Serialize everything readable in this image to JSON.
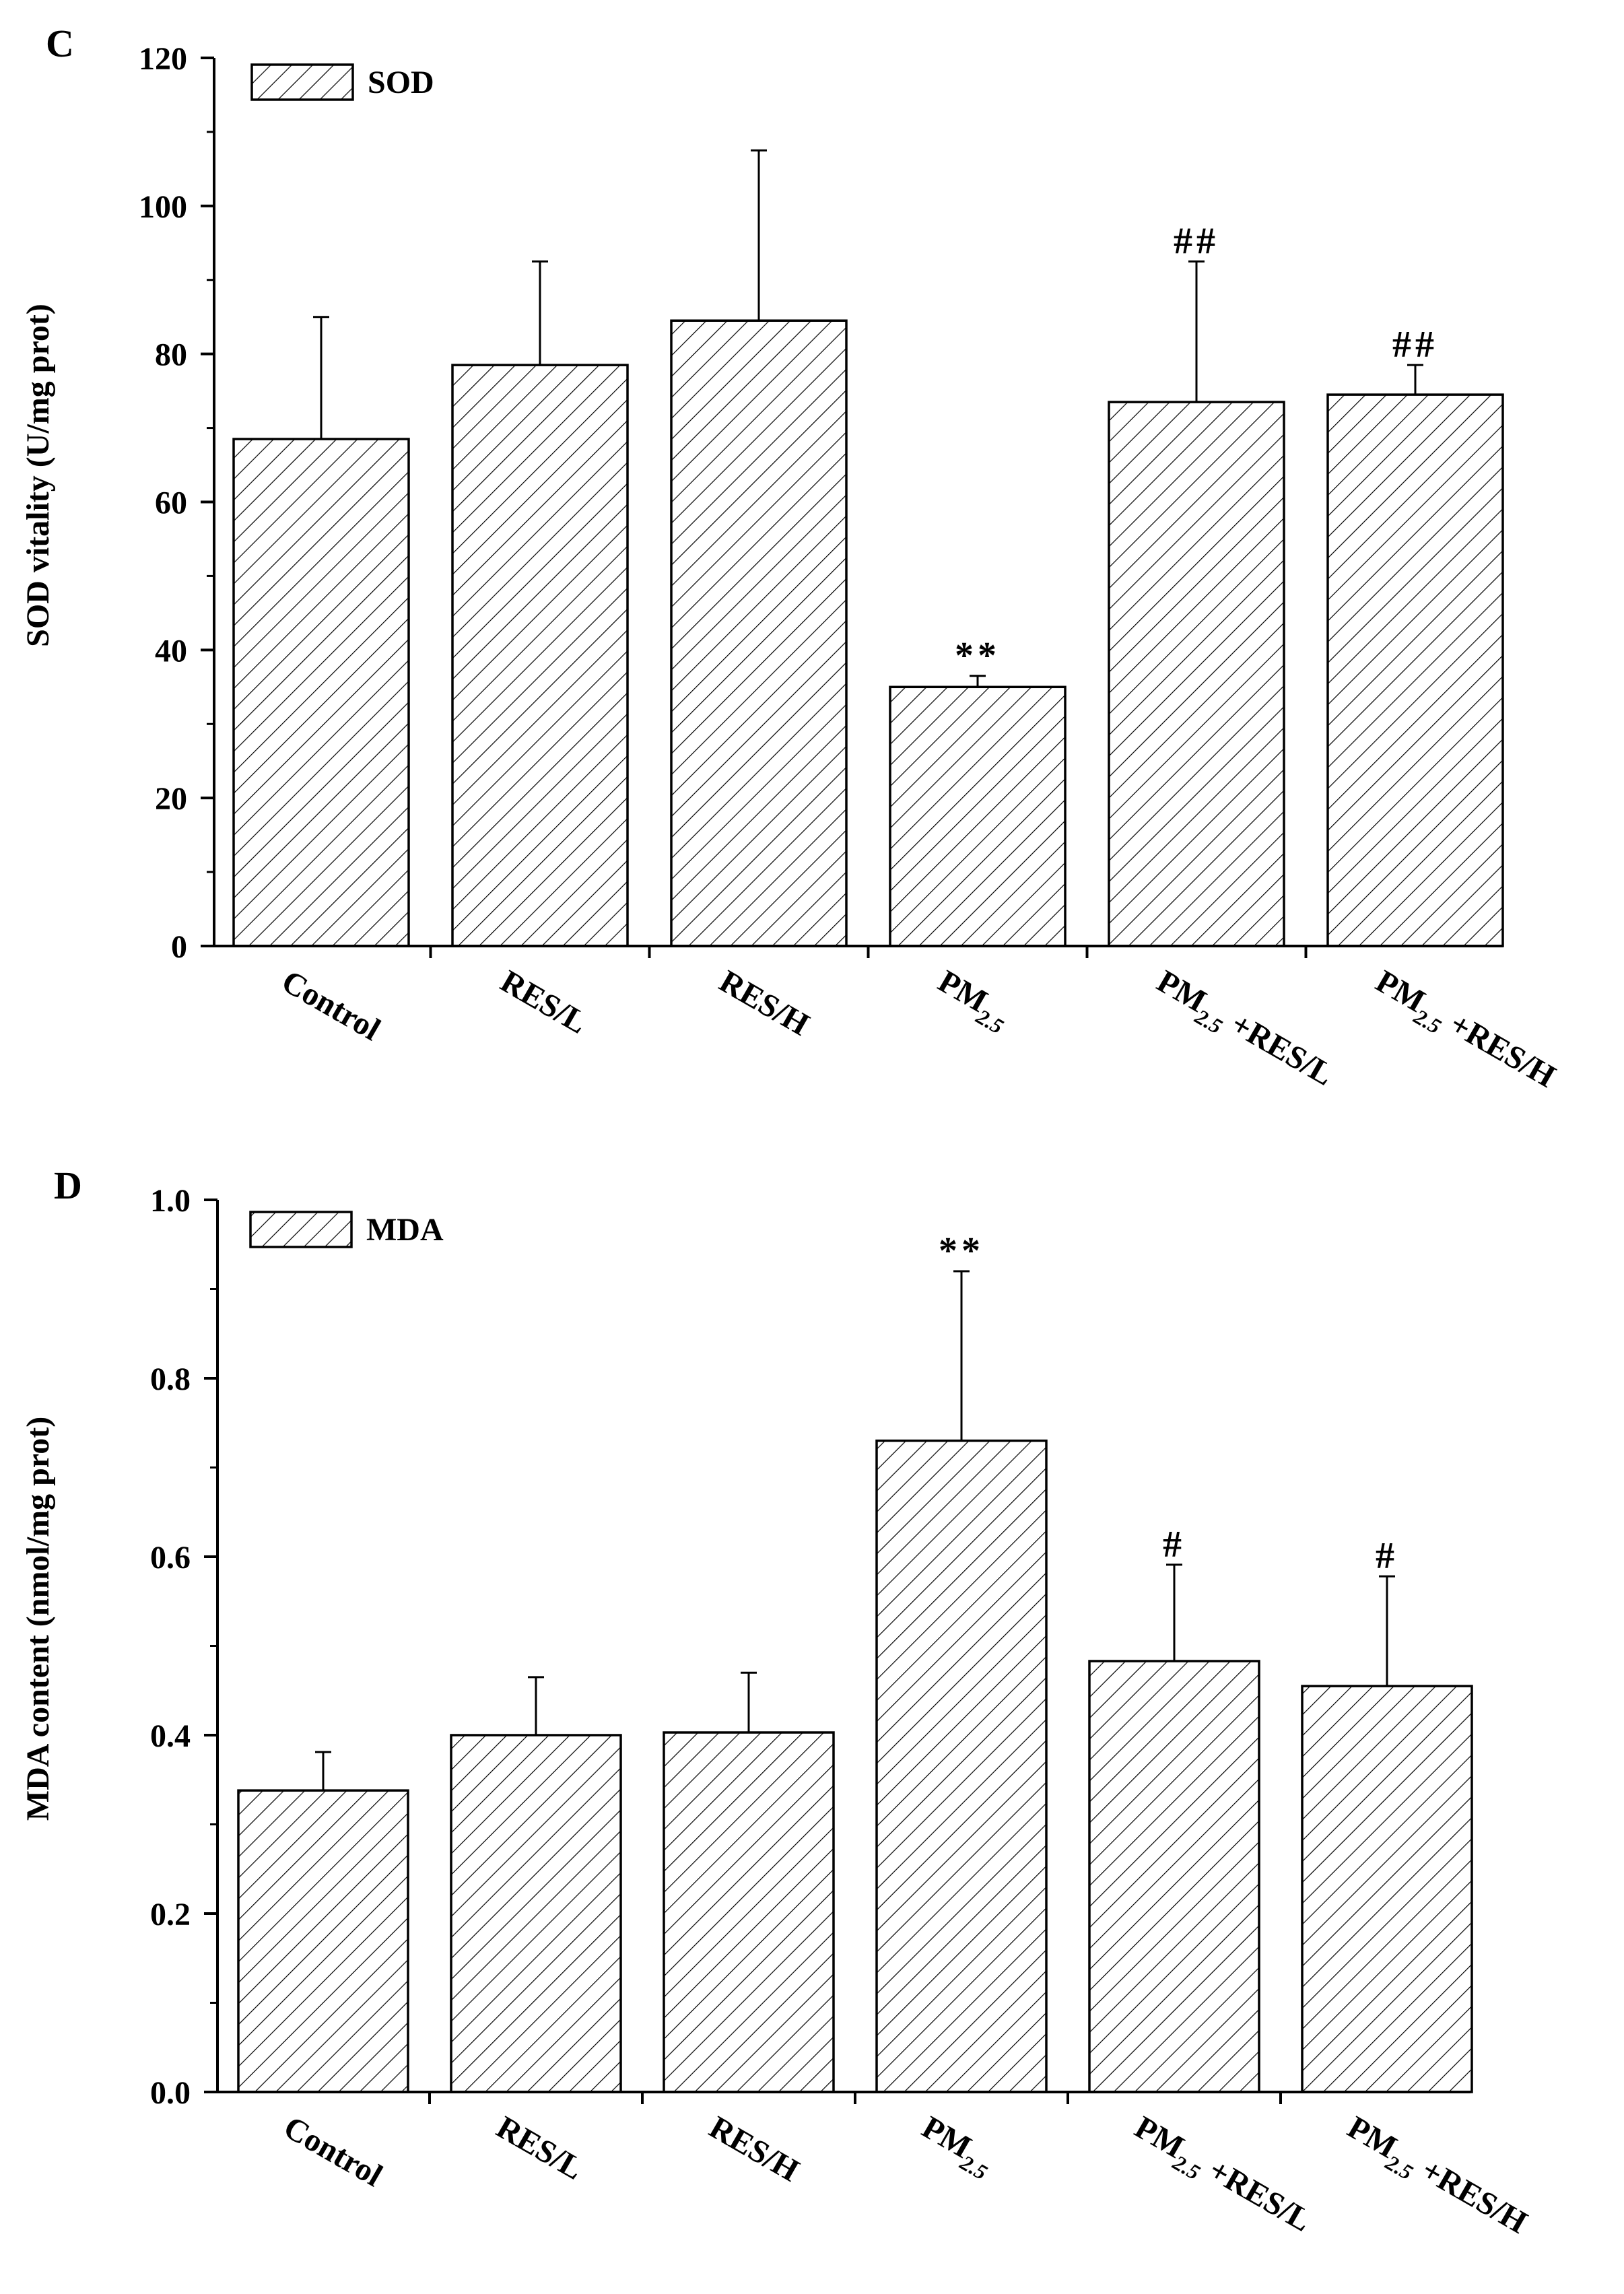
{
  "chart_data": [
    {
      "type": "bar",
      "panel_label": "C",
      "title": "",
      "xlabel": "",
      "ylabel": "SOD vitality (U/mg prot)",
      "ylim": [
        0,
        120
      ],
      "yticks": [
        0,
        20,
        40,
        60,
        80,
        100,
        120
      ],
      "ytick_labels": [
        "0",
        "20",
        "40",
        "60",
        "80",
        "100",
        "120"
      ],
      "categories": [
        "Control",
        "RES/L",
        "RES/H",
        "PM2.5",
        "PM2.5 +RES/L",
        "PM2.5 +RES/H"
      ],
      "category_parts": [
        {
          "main": "Control",
          "sub": "",
          "rest": ""
        },
        {
          "main": "RES/L",
          "sub": "",
          "rest": ""
        },
        {
          "main": "RES/H",
          "sub": "",
          "rest": ""
        },
        {
          "main": "PM",
          "sub": "2.5",
          "rest": ""
        },
        {
          "main": "PM",
          "sub": "2.5",
          "rest": " +RES/L"
        },
        {
          "main": "PM",
          "sub": "2.5",
          "rest": " +RES/H"
        }
      ],
      "legend": [
        "SOD"
      ],
      "legend_position": "top-left",
      "series": [
        {
          "name": "SOD",
          "values": [
            68.5,
            78.5,
            84.5,
            35,
            73.5,
            74.5
          ],
          "errors": [
            16.5,
            14,
            23,
            1.5,
            19,
            4
          ],
          "annotations": [
            "",
            "",
            "",
            "**",
            "##",
            "##"
          ]
        }
      ]
    },
    {
      "type": "bar",
      "panel_label": "D",
      "title": "",
      "xlabel": "",
      "ylabel": "MDA content (nmol/mg prot)",
      "ylim": [
        0,
        1.0
      ],
      "yticks": [
        0,
        0.2,
        0.4,
        0.6,
        0.8,
        1.0
      ],
      "ytick_labels": [
        "0.0",
        "0.2",
        "0.4",
        "0.6",
        "0.8",
        "1.0"
      ],
      "categories": [
        "Control",
        "RES/L",
        "RES/H",
        "PM2.5",
        "PM2.5 +RES/L",
        "PM2.5 +RES/H"
      ],
      "category_parts": [
        {
          "main": "Control",
          "sub": "",
          "rest": ""
        },
        {
          "main": "RES/L",
          "sub": "",
          "rest": ""
        },
        {
          "main": "RES/H",
          "sub": "",
          "rest": ""
        },
        {
          "main": "PM",
          "sub": "2.5",
          "rest": ""
        },
        {
          "main": "PM",
          "sub": "2.5",
          "rest": " +RES/L"
        },
        {
          "main": "PM",
          "sub": "2.5",
          "rest": " +RES/H"
        }
      ],
      "legend": [
        "MDA"
      ],
      "legend_position": "top-left",
      "series": [
        {
          "name": "MDA",
          "values": [
            0.338,
            0.4,
            0.403,
            0.73,
            0.483,
            0.455
          ],
          "errors": [
            0.043,
            0.065,
            0.067,
            0.19,
            0.108,
            0.123
          ],
          "annotations": [
            "",
            "",
            "",
            "**",
            "#",
            "#"
          ]
        }
      ]
    }
  ]
}
